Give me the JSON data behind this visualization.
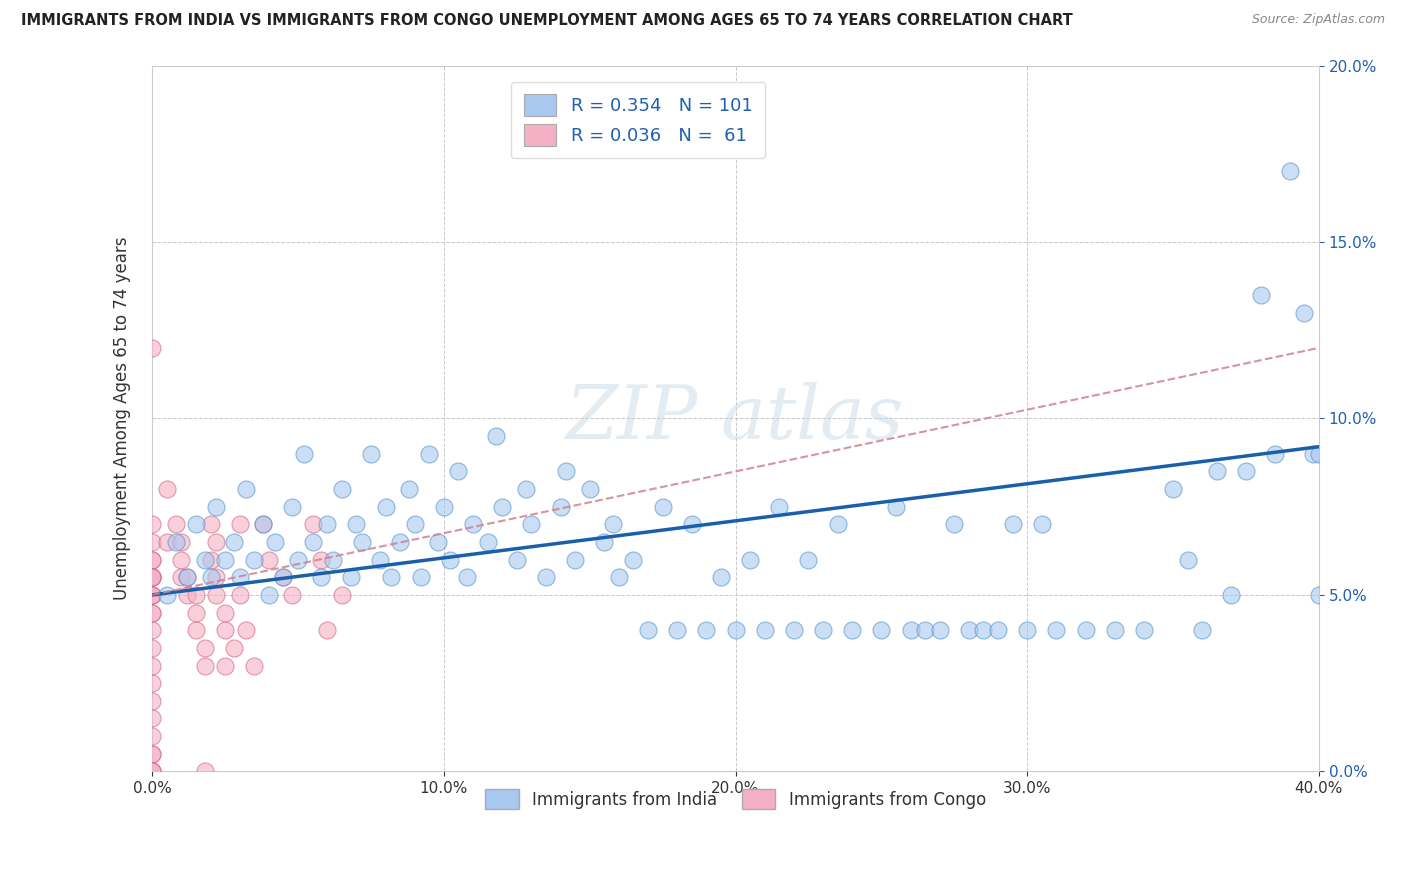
{
  "title": "IMMIGRANTS FROM INDIA VS IMMIGRANTS FROM CONGO UNEMPLOYMENT AMONG AGES 65 TO 74 YEARS CORRELATION CHART",
  "source": "Source: ZipAtlas.com",
  "ylabel": "Unemployment Among Ages 65 to 74 years",
  "xlim": [
    0.0,
    0.4
  ],
  "ylim": [
    0.0,
    0.2
  ],
  "india_R": "0.354",
  "india_N": "101",
  "congo_R": "0.036",
  "congo_N": " 61",
  "india_color": "#a8c8f0",
  "india_edge": "#5090c8",
  "congo_color": "#f5b0c5",
  "congo_edge": "#d06080",
  "india_line_color": "#1a5faa",
  "congo_line_color": "#d08090",
  "background_color": "#ffffff",
  "grid_color": "#c8c8c8",
  "india_x": [
    0.005,
    0.008,
    0.012,
    0.015,
    0.018,
    0.02,
    0.022,
    0.025,
    0.028,
    0.03,
    0.032,
    0.035,
    0.038,
    0.04,
    0.042,
    0.045,
    0.048,
    0.05,
    0.052,
    0.055,
    0.058,
    0.06,
    0.062,
    0.065,
    0.068,
    0.07,
    0.072,
    0.075,
    0.078,
    0.08,
    0.082,
    0.085,
    0.088,
    0.09,
    0.092,
    0.095,
    0.098,
    0.1,
    0.102,
    0.105,
    0.108,
    0.11,
    0.115,
    0.118,
    0.12,
    0.125,
    0.128,
    0.13,
    0.135,
    0.14,
    0.142,
    0.145,
    0.15,
    0.155,
    0.158,
    0.16,
    0.165,
    0.17,
    0.175,
    0.18,
    0.185,
    0.19,
    0.195,
    0.2,
    0.205,
    0.21,
    0.215,
    0.22,
    0.225,
    0.23,
    0.235,
    0.24,
    0.25,
    0.255,
    0.26,
    0.265,
    0.27,
    0.275,
    0.28,
    0.285,
    0.29,
    0.295,
    0.3,
    0.305,
    0.31,
    0.32,
    0.33,
    0.34,
    0.35,
    0.355,
    0.36,
    0.365,
    0.37,
    0.375,
    0.38,
    0.385,
    0.39,
    0.395,
    0.398,
    0.4,
    0.4
  ],
  "india_y": [
    0.05,
    0.065,
    0.055,
    0.07,
    0.06,
    0.055,
    0.075,
    0.06,
    0.065,
    0.055,
    0.08,
    0.06,
    0.07,
    0.05,
    0.065,
    0.055,
    0.075,
    0.06,
    0.09,
    0.065,
    0.055,
    0.07,
    0.06,
    0.08,
    0.055,
    0.07,
    0.065,
    0.09,
    0.06,
    0.075,
    0.055,
    0.065,
    0.08,
    0.07,
    0.055,
    0.09,
    0.065,
    0.075,
    0.06,
    0.085,
    0.055,
    0.07,
    0.065,
    0.095,
    0.075,
    0.06,
    0.08,
    0.07,
    0.055,
    0.075,
    0.085,
    0.06,
    0.08,
    0.065,
    0.07,
    0.055,
    0.06,
    0.04,
    0.075,
    0.04,
    0.07,
    0.04,
    0.055,
    0.04,
    0.06,
    0.04,
    0.075,
    0.04,
    0.06,
    0.04,
    0.07,
    0.04,
    0.04,
    0.075,
    0.04,
    0.04,
    0.04,
    0.07,
    0.04,
    0.04,
    0.04,
    0.07,
    0.04,
    0.07,
    0.04,
    0.04,
    0.04,
    0.04,
    0.08,
    0.06,
    0.04,
    0.085,
    0.05,
    0.085,
    0.135,
    0.09,
    0.17,
    0.13,
    0.09,
    0.05,
    0.09
  ],
  "congo_x": [
    0.0,
    0.0,
    0.0,
    0.0,
    0.0,
    0.0,
    0.0,
    0.0,
    0.0,
    0.0,
    0.0,
    0.0,
    0.0,
    0.0,
    0.0,
    0.0,
    0.0,
    0.0,
    0.0,
    0.0,
    0.0,
    0.0,
    0.0,
    0.0,
    0.0,
    0.0,
    0.005,
    0.005,
    0.008,
    0.01,
    0.01,
    0.01,
    0.012,
    0.012,
    0.015,
    0.015,
    0.015,
    0.018,
    0.018,
    0.018,
    0.02,
    0.02,
    0.022,
    0.022,
    0.022,
    0.025,
    0.025,
    0.025,
    0.028,
    0.03,
    0.03,
    0.032,
    0.035,
    0.038,
    0.04,
    0.045,
    0.048,
    0.055,
    0.058,
    0.06,
    0.065
  ],
  "congo_y": [
    0.12,
    0.06,
    0.065,
    0.07,
    0.06,
    0.055,
    0.05,
    0.055,
    0.055,
    0.05,
    0.055,
    0.045,
    0.05,
    0.04,
    0.045,
    0.03,
    0.035,
    0.02,
    0.025,
    0.01,
    0.015,
    0.005,
    0.005,
    0.0,
    0.0,
    0.0,
    0.08,
    0.065,
    0.07,
    0.06,
    0.065,
    0.055,
    0.05,
    0.055,
    0.04,
    0.045,
    0.05,
    0.03,
    0.035,
    0.0,
    0.07,
    0.06,
    0.055,
    0.065,
    0.05,
    0.04,
    0.045,
    0.03,
    0.035,
    0.07,
    0.05,
    0.04,
    0.03,
    0.07,
    0.06,
    0.055,
    0.05,
    0.07,
    0.06,
    0.04,
    0.05
  ],
  "india_line_x0": 0.0,
  "india_line_y0": 0.05,
  "india_line_x1": 0.4,
  "india_line_y1": 0.092,
  "congo_line_x0": 0.0,
  "congo_line_y0": 0.05,
  "congo_line_x1": 0.4,
  "congo_line_y1": 0.12
}
